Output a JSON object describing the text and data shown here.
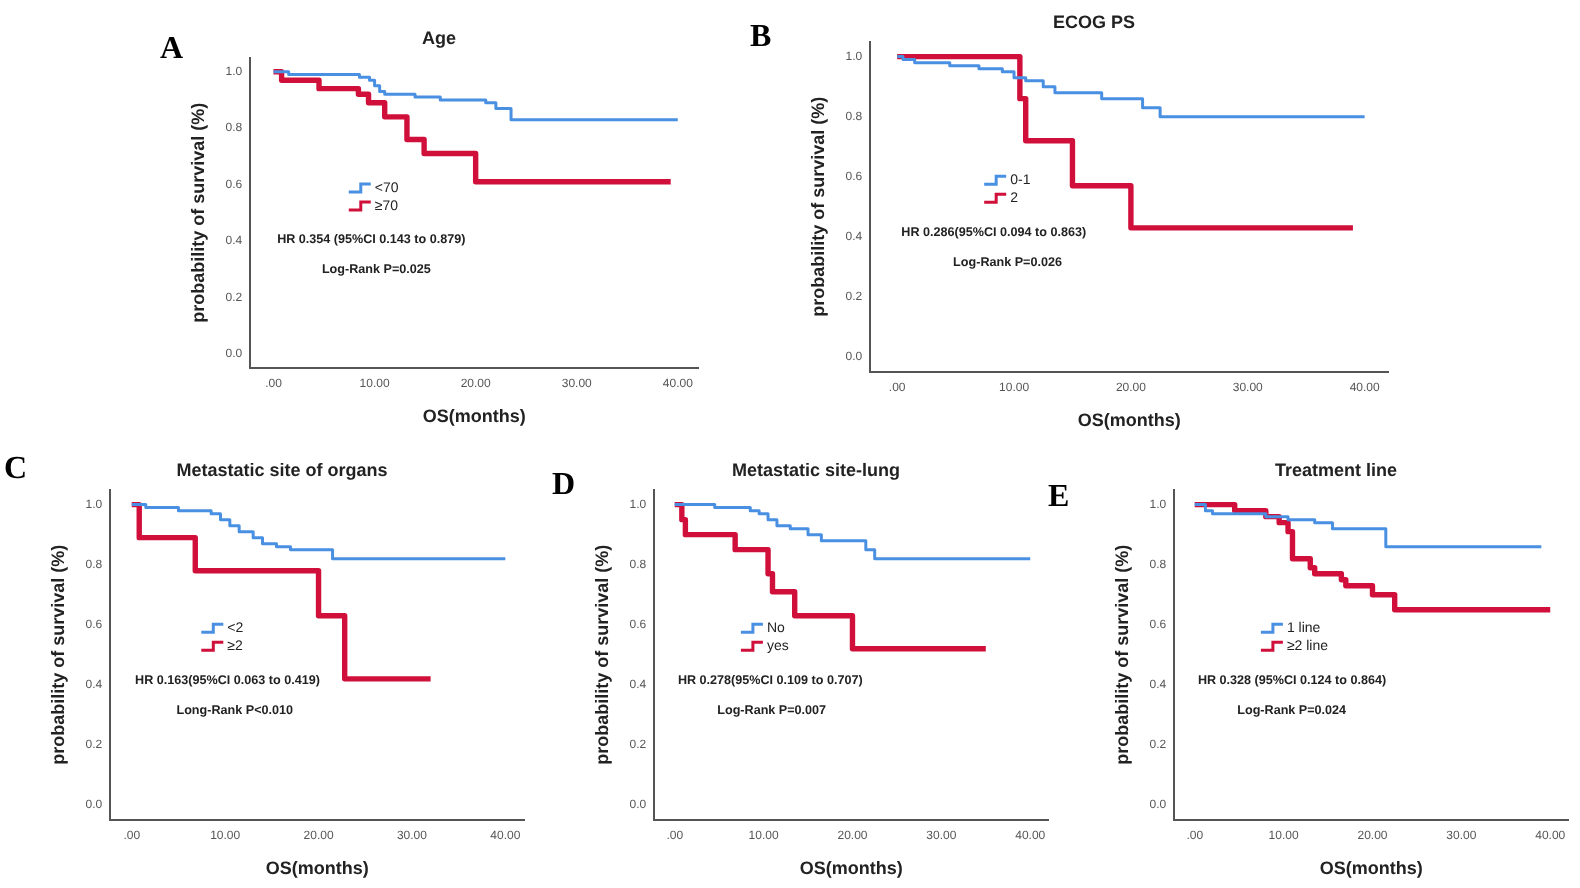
{
  "chart_data": [
    {
      "type": "step",
      "title": "Age",
      "xlabel": "OS(months)",
      "ylabel": "probability of survival (%)",
      "annotations": [
        "A",
        "HR 0.354 (95%CI 0.143 to 0.879)",
        "Log-Rank P=0.025"
      ],
      "series": [
        {
          "name": "<70",
          "color": "#4a90e2",
          "x": [
            0,
            1.5,
            8.5,
            9.5,
            10,
            10.5,
            11,
            14,
            16.5,
            21,
            22,
            23.5,
            40
          ],
          "values": [
            1.0,
            0.99,
            0.98,
            0.97,
            0.95,
            0.93,
            0.92,
            0.91,
            0.9,
            0.89,
            0.87,
            0.83,
            0.83
          ]
        },
        {
          "name": "≥70",
          "color": "#d0103a",
          "x": [
            0,
            0.8,
            4.5,
            8.4,
            9.4,
            11,
            13.2,
            14.9,
            20,
            39.3
          ],
          "values": [
            1.0,
            0.97,
            0.94,
            0.92,
            0.89,
            0.84,
            0.76,
            0.71,
            0.61,
            0.61
          ]
        }
      ],
      "xlim": [
        -2.3,
        42
      ],
      "xticks": [
        {
          "value": 0,
          "label": ".00"
        },
        {
          "value": 10,
          "label": "10.00"
        },
        {
          "value": 20,
          "label": "20.00"
        },
        {
          "value": 30,
          "label": "30.00"
        },
        {
          "value": 40,
          "label": "40.00"
        }
      ],
      "ylim": [
        -0.05,
        1.05
      ],
      "yticks": [
        {
          "value": 0,
          "label": "0.0"
        },
        {
          "value": 0.2,
          "label": "0.2"
        },
        {
          "value": 0.4,
          "label": "0.4"
        },
        {
          "value": 0.6,
          "label": "0.6"
        },
        {
          "value": 0.8,
          "label": "0.8"
        },
        {
          "value": 1,
          "label": "1.0"
        }
      ],
      "grid": false,
      "legend": "left",
      "line_style": "solid"
    },
    {
      "type": "step",
      "title": "ECOG PS",
      "xlabel": "OS(months)",
      "ylabel": "probability of survival (%)",
      "annotations": [
        "B",
        "HR 0.286(95%CI 0.094 to 0.863)",
        "Log-Rank P=0.026"
      ],
      "series": [
        {
          "name": "0-1",
          "color": "#4a90e2",
          "x": [
            0,
            0.5,
            1.5,
            4.5,
            7,
            9,
            10,
            11,
            12.5,
            13.5,
            17.5,
            21,
            22.5,
            40
          ],
          "values": [
            1.0,
            0.99,
            0.98,
            0.97,
            0.96,
            0.95,
            0.93,
            0.92,
            0.9,
            0.88,
            0.86,
            0.83,
            0.8,
            0.8
          ]
        },
        {
          "name": "2",
          "color": "#d0103a",
          "x": [
            0,
            10.5,
            11,
            15,
            20,
            39
          ],
          "values": [
            1.0,
            0.86,
            0.72,
            0.57,
            0.43,
            0.43
          ]
        }
      ],
      "xlim": [
        -2.3,
        42
      ],
      "xticks": [
        {
          "value": 0,
          "label": ".00"
        },
        {
          "value": 10,
          "label": "10.00"
        },
        {
          "value": 20,
          "label": "20.00"
        },
        {
          "value": 30,
          "label": "30.00"
        },
        {
          "value": 40,
          "label": "40.00"
        }
      ],
      "ylim": [
        -0.05,
        1.05
      ],
      "yticks": [
        {
          "value": 0,
          "label": "0.0"
        },
        {
          "value": 0.2,
          "label": "0.2"
        },
        {
          "value": 0.4,
          "label": "0.4"
        },
        {
          "value": 0.6,
          "label": "0.6"
        },
        {
          "value": 0.8,
          "label": "0.8"
        },
        {
          "value": 1,
          "label": "1.0"
        }
      ],
      "grid": false,
      "legend": "left",
      "line_style": "solid"
    },
    {
      "type": "step",
      "title": "Metastatic site of organs",
      "xlabel": "OS(months)",
      "ylabel": "probability of survival (%)",
      "annotations": [
        "C",
        "HR 0.163(95%CI 0.063 to 0.419)",
        "Long-Rank P<0.010"
      ],
      "series": [
        {
          "name": "<2",
          "color": "#4a90e2",
          "x": [
            0,
            1.5,
            5,
            8.5,
            9.5,
            10.5,
            11.5,
            13,
            14,
            15.5,
            17,
            21.5,
            40
          ],
          "values": [
            1.0,
            0.99,
            0.98,
            0.97,
            0.95,
            0.93,
            0.91,
            0.89,
            0.87,
            0.86,
            0.85,
            0.82,
            0.82
          ]
        },
        {
          "name": "≥2",
          "color": "#d0103a",
          "x": [
            0,
            0.8,
            6.8,
            20,
            22.8,
            32
          ],
          "values": [
            1.0,
            0.89,
            0.78,
            0.63,
            0.42,
            0.42
          ]
        }
      ],
      "xlim": [
        -2.3,
        42
      ],
      "xticks": [
        {
          "value": 0,
          "label": ".00"
        },
        {
          "value": 10,
          "label": "10.00"
        },
        {
          "value": 20,
          "label": "20.00"
        },
        {
          "value": 30,
          "label": "30.00"
        },
        {
          "value": 40,
          "label": "40.00"
        }
      ],
      "ylim": [
        -0.05,
        1.05
      ],
      "yticks": [
        {
          "value": 0,
          "label": "0.0"
        },
        {
          "value": 0.2,
          "label": "0.2"
        },
        {
          "value": 0.4,
          "label": "0.4"
        },
        {
          "value": 0.6,
          "label": "0.6"
        },
        {
          "value": 0.8,
          "label": "0.8"
        },
        {
          "value": 1,
          "label": "1.0"
        }
      ],
      "grid": false,
      "legend": "left",
      "line_style": "solid"
    },
    {
      "type": "step",
      "title": "Metastatic site-lung",
      "xlabel": "OS(months)",
      "ylabel": "probability of survival (%)",
      "annotations": [
        "D",
        "HR 0.278(95%CI 0.109 to 0.707)",
        "Log-Rank P=0.007"
      ],
      "series": [
        {
          "name": "No",
          "color": "#4a90e2",
          "x": [
            0,
            4.5,
            8.5,
            9.5,
            10.5,
            11.5,
            13,
            15,
            16.5,
            21.5,
            22.5,
            40
          ],
          "values": [
            1.0,
            0.99,
            0.98,
            0.97,
            0.95,
            0.93,
            0.92,
            0.9,
            0.88,
            0.85,
            0.82,
            0.82
          ]
        },
        {
          "name": "yes",
          "color": "#d0103a",
          "x": [
            0,
            0.8,
            1.2,
            6.8,
            10.5,
            11,
            13.5,
            20,
            35
          ],
          "values": [
            1.0,
            0.95,
            0.9,
            0.85,
            0.77,
            0.71,
            0.63,
            0.52,
            0.52
          ]
        }
      ],
      "xlim": [
        -2.3,
        42
      ],
      "xticks": [
        {
          "value": 0,
          "label": ".00"
        },
        {
          "value": 10,
          "label": "10.00"
        },
        {
          "value": 20,
          "label": "20.00"
        },
        {
          "value": 30,
          "label": "30.00"
        },
        {
          "value": 40,
          "label": "40.00"
        }
      ],
      "ylim": [
        -0.05,
        1.05
      ],
      "yticks": [
        {
          "value": 0,
          "label": "0.0"
        },
        {
          "value": 0.2,
          "label": "0.2"
        },
        {
          "value": 0.4,
          "label": "0.4"
        },
        {
          "value": 0.6,
          "label": "0.6"
        },
        {
          "value": 0.8,
          "label": "0.8"
        },
        {
          "value": 1,
          "label": "1.0"
        }
      ],
      "grid": false,
      "legend": "left",
      "line_style": "solid"
    },
    {
      "type": "step",
      "title": "Treatment line",
      "xlabel": "OS(months)",
      "ylabel": "probability of survival (%)",
      "annotations": [
        "E",
        "HR 0.328 (95%CI 0.124 to 0.864)",
        "Log-Rank P=0.024"
      ],
      "series": [
        {
          "name": "1 line",
          "color": "#4a90e2",
          "x": [
            0,
            1.2,
            2,
            8,
            10.5,
            13.5,
            15.5,
            21.5,
            39
          ],
          "values": [
            1.0,
            0.98,
            0.97,
            0.96,
            0.95,
            0.94,
            0.92,
            0.86,
            0.86
          ]
        },
        {
          "name": "≥2 line",
          "color": "#d0103a",
          "x": [
            0,
            4.5,
            8,
            9.5,
            10.5,
            11,
            13,
            13.5,
            16.5,
            17,
            20,
            22.5,
            40
          ],
          "values": [
            1.0,
            0.98,
            0.96,
            0.94,
            0.91,
            0.82,
            0.79,
            0.77,
            0.75,
            0.73,
            0.7,
            0.65,
            0.65
          ]
        }
      ],
      "xlim": [
        -2.3,
        42
      ],
      "xticks": [
        {
          "value": 0,
          "label": ".00"
        },
        {
          "value": 10,
          "label": "10.00"
        },
        {
          "value": 20,
          "label": "20.00"
        },
        {
          "value": 30,
          "label": "30.00"
        },
        {
          "value": 40,
          "label": "40.00"
        }
      ],
      "ylim": [
        -0.05,
        1.05
      ],
      "yticks": [
        {
          "value": 0,
          "label": "0.0"
        },
        {
          "value": 0.2,
          "label": "0.2"
        },
        {
          "value": 0.4,
          "label": "0.4"
        },
        {
          "value": 0.6,
          "label": "0.6"
        },
        {
          "value": 0.8,
          "label": "0.8"
        },
        {
          "value": 1,
          "label": "1.0"
        }
      ],
      "grid": false,
      "legend": "left",
      "line_style": "solid"
    }
  ]
}
